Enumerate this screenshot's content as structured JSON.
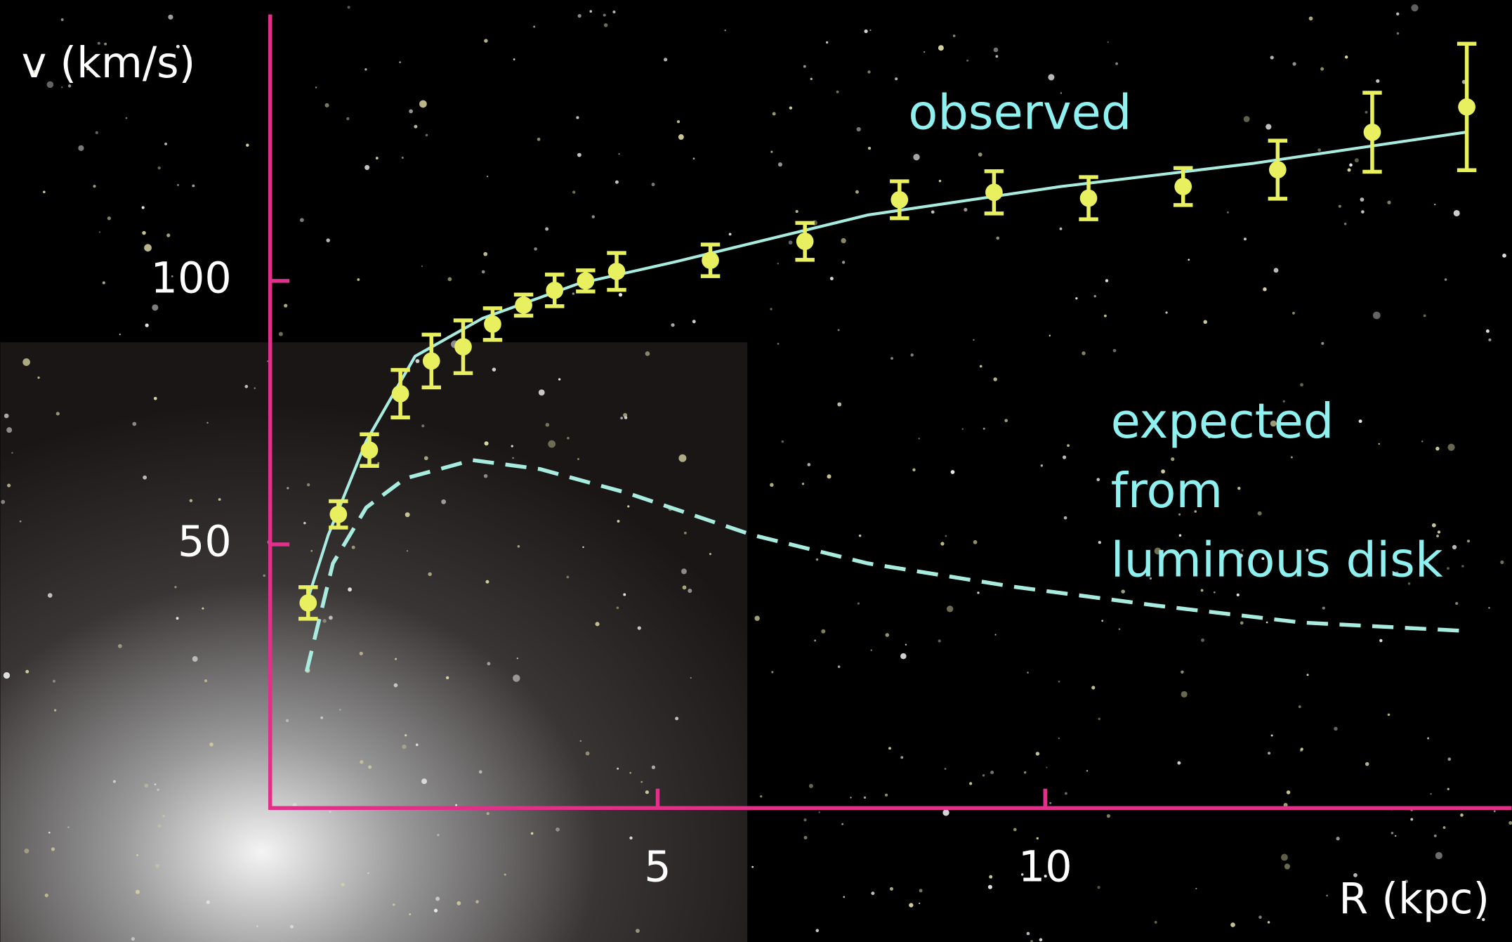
{
  "chart_data": {
    "type": "errorbar-line",
    "xlabel": "R (kpc)",
    "ylabel": "v (km/s)",
    "xlim": [
      0,
      16
    ],
    "ylim": [
      0,
      150
    ],
    "xticks": [
      5,
      10
    ],
    "yticks": [
      50,
      100
    ],
    "axis_color": "#e0308a",
    "series": [
      {
        "name": "observed",
        "color": "#e8f060",
        "line_color": "#a8ece0",
        "line_style": "solid",
        "x": [
          0.49,
          0.88,
          1.28,
          1.68,
          2.08,
          2.49,
          2.87,
          3.27,
          3.67,
          4.07,
          4.47,
          5.68,
          6.9,
          8.12,
          9.34,
          10.56,
          11.78,
          13.0,
          14.22,
          15.44
        ],
        "values": [
          38.9,
          55.7,
          67.9,
          78.6,
          84.8,
          87.5,
          91.8,
          95.4,
          98.2,
          100,
          101.8,
          103.9,
          107.5,
          115.4,
          116.8,
          115.7,
          117.9,
          121.1,
          128.2,
          133.0
        ],
        "errors": [
          3,
          2.5,
          3,
          4.5,
          5,
          5,
          3,
          2,
          3,
          2,
          3.5,
          3,
          3.5,
          3.5,
          4,
          4,
          3.5,
          5.5,
          7.5,
          12
        ],
        "fit": {
          "x": [
            0.45,
            0.75,
            1.24,
            1.87,
            2.74,
            3.98,
            5.22,
            7.71,
            10.2,
            12.69,
            15.42
          ],
          "values": [
            38,
            51.8,
            69.6,
            85.7,
            92.9,
            99.5,
            103.6,
            112.5,
            117.9,
            122.3,
            128.2
          ]
        }
      },
      {
        "name": [
          "expected",
          "from",
          "luminous disk"
        ],
        "color": "#a8ece0",
        "line_style": "dashed",
        "x": [
          0.47,
          0.81,
          1.24,
          1.74,
          2.61,
          3.48,
          4.6,
          6.22,
          7.71,
          9.58,
          11.44,
          13.3,
          15.4
        ],
        "values": [
          25.9,
          46.4,
          57,
          62.5,
          66,
          64.3,
          59.8,
          51.8,
          46.4,
          42,
          38.4,
          35.2,
          33.6
        ]
      }
    ]
  }
}
